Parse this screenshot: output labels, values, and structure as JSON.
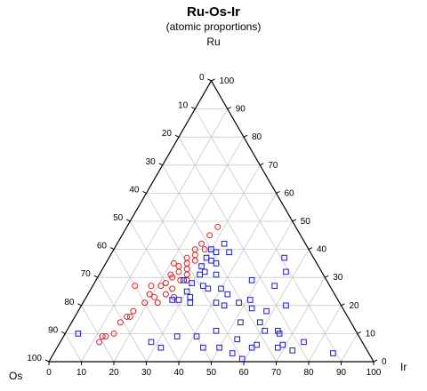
{
  "chart_data": {
    "type": "scatter",
    "subtype": "ternary",
    "title": "Ru-Os-Ir",
    "subtitle": "(atomic proportions)",
    "vertices": {
      "top": "Ru",
      "left": "Os",
      "right": "Ir"
    },
    "grid_step": 10,
    "grid": true,
    "ticks": [
      "0",
      "10",
      "20",
      "30",
      "40",
      "50",
      "60",
      "70",
      "80",
      "90",
      "100"
    ],
    "series": [
      {
        "marker": "circle",
        "color": "#dd2222",
        "points": [
          {
            "Ir": 28,
            "Ru": 48
          },
          {
            "Ir": 27,
            "Ru": 45
          },
          {
            "Ir": 26,
            "Ru": 42
          },
          {
            "Ir": 25,
            "Ru": 40
          },
          {
            "Ir": 28,
            "Ru": 40
          },
          {
            "Ir": 26,
            "Ru": 38
          },
          {
            "Ir": 24,
            "Ru": 37
          },
          {
            "Ir": 27,
            "Ru": 36
          },
          {
            "Ir": 25,
            "Ru": 35
          },
          {
            "Ir": 23,
            "Ru": 34
          },
          {
            "Ir": 21,
            "Ru": 35
          },
          {
            "Ir": 26,
            "Ru": 33
          },
          {
            "Ir": 24,
            "Ru": 32
          },
          {
            "Ir": 22,
            "Ru": 31
          },
          {
            "Ir": 27,
            "Ru": 31
          },
          {
            "Ir": 26,
            "Ru": 29
          },
          {
            "Ir": 23,
            "Ru": 30
          },
          {
            "Ir": 22,
            "Ru": 28
          },
          {
            "Ir": 28,
            "Ru": 29
          },
          {
            "Ir": 21,
            "Ru": 27
          },
          {
            "Ir": 25,
            "Ru": 26
          },
          {
            "Ir": 18,
            "Ru": 27
          },
          {
            "Ir": 13,
            "Ru": 27
          },
          {
            "Ir": 19,
            "Ru": 24
          },
          {
            "Ir": 24,
            "Ru": 24
          },
          {
            "Ir": 27,
            "Ru": 23
          },
          {
            "Ir": 21,
            "Ru": 23
          },
          {
            "Ir": 23,
            "Ru": 21
          },
          {
            "Ir": 19,
            "Ru": 21
          },
          {
            "Ir": 17,
            "Ru": 18
          },
          {
            "Ir": 16,
            "Ru": 16
          },
          {
            "Ir": 17,
            "Ru": 16
          },
          {
            "Ir": 15,
            "Ru": 14
          },
          {
            "Ir": 13,
            "Ru": 9
          },
          {
            "Ir": 12,
            "Ru": 9
          },
          {
            "Ir": 15,
            "Ru": 10
          },
          {
            "Ir": 12,
            "Ru": 7
          }
        ]
      },
      {
        "marker": "square",
        "color": "#1a1acc",
        "points": [
          {
            "Ir": 33,
            "Ru": 42
          },
          {
            "Ir": 30,
            "Ru": 40
          },
          {
            "Ir": 32,
            "Ru": 39
          },
          {
            "Ir": 36,
            "Ru": 39
          },
          {
            "Ir": 30,
            "Ru": 37
          },
          {
            "Ir": 32,
            "Ru": 36
          },
          {
            "Ir": 34,
            "Ru": 35
          },
          {
            "Ir": 30,
            "Ru": 34
          },
          {
            "Ir": 32,
            "Ru": 32
          },
          {
            "Ir": 31,
            "Ru": 31
          },
          {
            "Ir": 36,
            "Ru": 31
          },
          {
            "Ir": 27,
            "Ru": 29
          },
          {
            "Ir": 30,
            "Ru": 28
          },
          {
            "Ir": 34,
            "Ru": 27
          },
          {
            "Ir": 36,
            "Ru": 26
          },
          {
            "Ir": 30,
            "Ru": 25
          },
          {
            "Ir": 32,
            "Ru": 23
          },
          {
            "Ir": 29,
            "Ru": 22
          },
          {
            "Ir": 33,
            "Ru": 21
          },
          {
            "Ir": 27,
            "Ru": 22
          },
          {
            "Ir": 40,
            "Ru": 26
          },
          {
            "Ir": 43,
            "Ru": 24
          },
          {
            "Ir": 48,
            "Ru": 29
          },
          {
            "Ir": 54,
            "Ru": 37
          },
          {
            "Ir": 57,
            "Ru": 32
          },
          {
            "Ir": 56,
            "Ru": 27
          },
          {
            "Ir": 51,
            "Ru": 22
          },
          {
            "Ir": 48,
            "Ru": 21
          },
          {
            "Ir": 41,
            "Ru": 21
          },
          {
            "Ir": 44,
            "Ru": 20
          },
          {
            "Ir": 53,
            "Ru": 19
          },
          {
            "Ir": 58,
            "Ru": 18
          },
          {
            "Ir": 63,
            "Ru": 20
          },
          {
            "Ir": 52,
            "Ru": 14
          },
          {
            "Ir": 58,
            "Ru": 14
          },
          {
            "Ir": 61,
            "Ru": 11
          },
          {
            "Ir": 65,
            "Ru": 11
          },
          {
            "Ir": 66,
            "Ru": 10
          },
          {
            "Ir": 46,
            "Ru": 11
          },
          {
            "Ir": 41,
            "Ru": 9
          },
          {
            "Ir": 35,
            "Ru": 9
          },
          {
            "Ir": 54,
            "Ru": 8
          },
          {
            "Ir": 61,
            "Ru": 6
          },
          {
            "Ir": 69,
            "Ru": 6
          },
          {
            "Ir": 75,
            "Ru": 7
          },
          {
            "Ir": 60,
            "Ru": 5
          },
          {
            "Ir": 68,
            "Ru": 5
          },
          {
            "Ir": 73,
            "Ru": 4
          },
          {
            "Ir": 50,
            "Ru": 5
          },
          {
            "Ir": 55,
            "Ru": 3
          },
          {
            "Ir": 86,
            "Ru": 3
          },
          {
            "Ir": 59,
            "Ru": 1
          },
          {
            "Ir": 28,
            "Ru": 7
          },
          {
            "Ir": 32,
            "Ru": 5
          },
          {
            "Ir": 45,
            "Ru": 5
          },
          {
            "Ir": 4,
            "Ru": 10
          }
        ]
      }
    ]
  }
}
